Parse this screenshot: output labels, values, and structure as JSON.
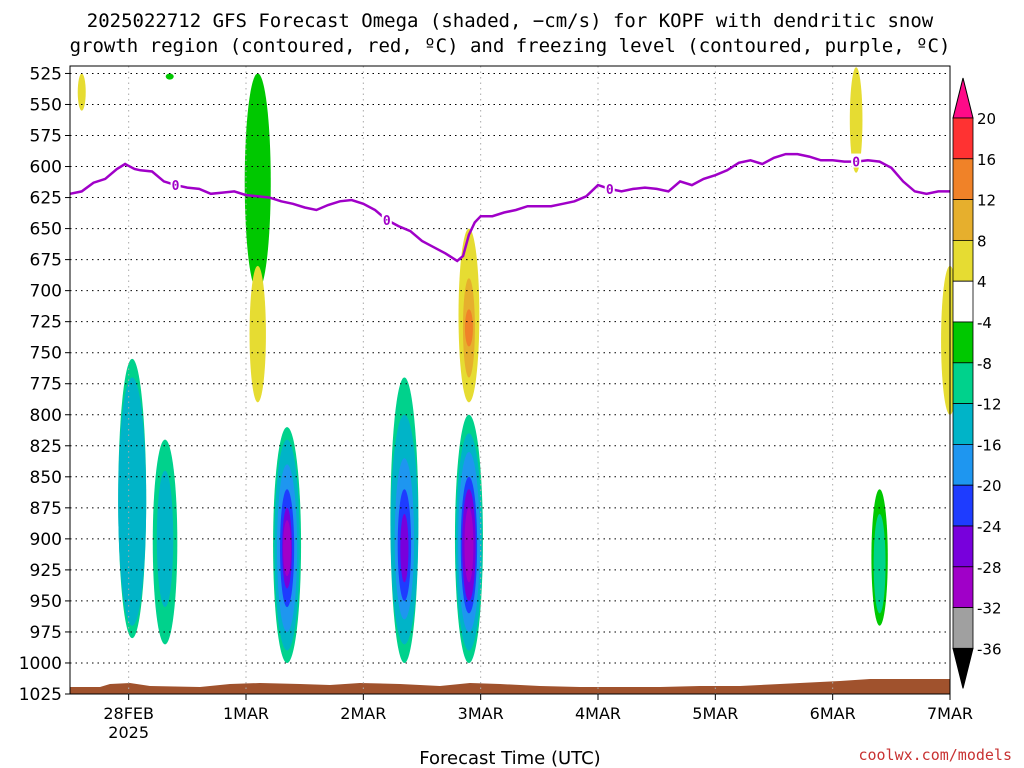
{
  "chart_data": {
    "type": "heatmap",
    "title_line1": "2025022712 GFS Forecast Omega (shaded, −cm/s) for KOPF with dendritic snow",
    "title_line2": "growth region (contoured, red, ºC) and freezing level (contoured, purple, ºC)",
    "xlabel": "Forecast Time (UTC)",
    "credit": "coolwx.com/models",
    "y_ticks": [
      525,
      550,
      575,
      600,
      625,
      650,
      675,
      700,
      725,
      750,
      775,
      800,
      825,
      850,
      875,
      900,
      925,
      950,
      975,
      1000,
      1025
    ],
    "y_range_hPa": [
      519,
      1025
    ],
    "x_ticks": [
      {
        "day": 0.5,
        "label": "28FEB",
        "sub": "2025"
      },
      {
        "day": 1.5,
        "label": "1MAR",
        "sub": ""
      },
      {
        "day": 2.5,
        "label": "2MAR",
        "sub": ""
      },
      {
        "day": 3.5,
        "label": "3MAR",
        "sub": ""
      },
      {
        "day": 4.5,
        "label": "4MAR",
        "sub": ""
      },
      {
        "day": 5.5,
        "label": "5MAR",
        "sub": ""
      },
      {
        "day": 6.5,
        "label": "6MAR",
        "sub": ""
      },
      {
        "day": 7.5,
        "label": "7MAR",
        "sub": ""
      }
    ],
    "x_range_days": [
      0,
      7.5
    ],
    "grid": true,
    "colorbar": {
      "labels": [
        "20",
        "16",
        "12",
        "8",
        "4",
        "-4",
        "-8",
        "-12",
        "-16",
        "-20",
        "-24",
        "-28",
        "-32",
        "-36"
      ],
      "colors": [
        "#ff0a88",
        "#ff3232",
        "#f08228",
        "#e6af2d",
        "#e6dc32",
        "#ffffff",
        "#00c800",
        "#00d28c",
        "#00b4c8",
        "#1e96f0",
        "#1e3cff",
        "#7800dc",
        "#a000c8",
        "#a0a0a0",
        "#000000"
      ]
    },
    "freezing_level": {
      "label": "0",
      "color": "#a000c8",
      "points": [
        [
          0,
          622
        ],
        [
          0.1,
          620
        ],
        [
          0.2,
          613
        ],
        [
          0.3,
          610
        ],
        [
          0.4,
          602
        ],
        [
          0.47,
          598
        ],
        [
          0.55,
          602
        ],
        [
          0.6,
          603
        ],
        [
          0.7,
          604
        ],
        [
          0.8,
          612
        ],
        [
          0.9,
          615
        ],
        [
          1.0,
          617
        ],
        [
          1.1,
          618
        ],
        [
          1.2,
          622
        ],
        [
          1.3,
          621
        ],
        [
          1.4,
          620
        ],
        [
          1.5,
          623
        ],
        [
          1.6,
          624
        ],
        [
          1.7,
          625
        ],
        [
          1.8,
          628
        ],
        [
          1.9,
          630
        ],
        [
          2.0,
          633
        ],
        [
          2.1,
          635
        ],
        [
          2.2,
          631
        ],
        [
          2.3,
          628
        ],
        [
          2.4,
          627
        ],
        [
          2.5,
          630
        ],
        [
          2.6,
          635
        ],
        [
          2.7,
          643
        ],
        [
          2.8,
          648
        ],
        [
          2.9,
          652
        ],
        [
          3.0,
          660
        ],
        [
          3.1,
          665
        ],
        [
          3.2,
          670
        ],
        [
          3.3,
          676
        ],
        [
          3.35,
          672
        ],
        [
          3.4,
          655
        ],
        [
          3.45,
          645
        ],
        [
          3.5,
          640
        ],
        [
          3.6,
          640
        ],
        [
          3.7,
          637
        ],
        [
          3.8,
          635
        ],
        [
          3.9,
          632
        ],
        [
          4.0,
          632
        ],
        [
          4.1,
          632
        ],
        [
          4.2,
          630
        ],
        [
          4.3,
          628
        ],
        [
          4.4,
          624
        ],
        [
          4.5,
          615
        ],
        [
          4.6,
          618
        ],
        [
          4.7,
          620
        ],
        [
          4.8,
          618
        ],
        [
          4.9,
          617
        ],
        [
          5.0,
          618
        ],
        [
          5.1,
          620
        ],
        [
          5.2,
          612
        ],
        [
          5.3,
          615
        ],
        [
          5.4,
          610
        ],
        [
          5.5,
          607
        ],
        [
          5.6,
          603
        ],
        [
          5.7,
          597
        ],
        [
          5.8,
          595
        ],
        [
          5.9,
          598
        ],
        [
          6.0,
          593
        ],
        [
          6.1,
          590
        ],
        [
          6.2,
          590
        ],
        [
          6.3,
          592
        ],
        [
          6.4,
          595
        ],
        [
          6.5,
          595
        ],
        [
          6.6,
          596
        ],
        [
          6.7,
          596
        ],
        [
          6.8,
          595
        ],
        [
          6.9,
          596
        ],
        [
          7.0,
          601
        ],
        [
          7.1,
          612
        ],
        [
          7.2,
          620
        ],
        [
          7.3,
          622
        ],
        [
          7.4,
          620
        ],
        [
          7.5,
          620
        ]
      ]
    },
    "omega_regions": [
      {
        "t": 0.1,
        "top": 525,
        "bot": 555,
        "v": 4
      },
      {
        "t": 0.85,
        "top": 525,
        "bot": 530,
        "v": -4
      },
      {
        "t": 0.53,
        "top": 755,
        "bot": 980,
        "v": -8
      },
      {
        "t": 0.53,
        "top": 770,
        "bot": 970,
        "v": -12
      },
      {
        "t": 0.81,
        "top": 820,
        "bot": 985,
        "v": -8
      },
      {
        "t": 0.81,
        "top": 845,
        "bot": 955,
        "v": -12
      },
      {
        "t": 1.85,
        "top": 810,
        "bot": 1000,
        "v": -8
      },
      {
        "t": 1.85,
        "top": 820,
        "bot": 990,
        "v": -12
      },
      {
        "t": 1.85,
        "top": 840,
        "bot": 975,
        "v": -16
      },
      {
        "t": 1.85,
        "top": 860,
        "bot": 955,
        "v": -20
      },
      {
        "t": 1.85,
        "top": 875,
        "bot": 940,
        "v": -24
      },
      {
        "t": 1.85,
        "top": 885,
        "bot": 930,
        "v": -28
      },
      {
        "t": 2.85,
        "top": 770,
        "bot": 1000,
        "v": -8
      },
      {
        "t": 2.85,
        "top": 800,
        "bot": 985,
        "v": -12
      },
      {
        "t": 2.85,
        "top": 835,
        "bot": 965,
        "v": -16
      },
      {
        "t": 2.85,
        "top": 860,
        "bot": 950,
        "v": -20
      },
      {
        "t": 2.85,
        "top": 880,
        "bot": 935,
        "v": -24
      },
      {
        "t": 3.4,
        "top": 800,
        "bot": 1000,
        "v": -8
      },
      {
        "t": 3.4,
        "top": 815,
        "bot": 990,
        "v": -12
      },
      {
        "t": 3.4,
        "top": 830,
        "bot": 975,
        "v": -16
      },
      {
        "t": 3.4,
        "top": 850,
        "bot": 960,
        "v": -20
      },
      {
        "t": 3.4,
        "top": 860,
        "bot": 950,
        "v": -24
      },
      {
        "t": 3.4,
        "top": 875,
        "bot": 935,
        "v": -28
      },
      {
        "t": 3.4,
        "top": 650,
        "bot": 790,
        "v": 4
      },
      {
        "t": 3.4,
        "top": 690,
        "bot": 770,
        "v": 8
      },
      {
        "t": 3.4,
        "top": 715,
        "bot": 745,
        "v": 12
      },
      {
        "t": 1.6,
        "top": 525,
        "bot": 700,
        "v": -4
      },
      {
        "t": 1.6,
        "top": 680,
        "bot": 790,
        "v": 4
      },
      {
        "t": 6.7,
        "top": 520,
        "bot": 605,
        "v": 4
      },
      {
        "t": 6.9,
        "top": 860,
        "bot": 970,
        "v": -4
      },
      {
        "t": 6.9,
        "top": 880,
        "bot": 960,
        "v": -8
      },
      {
        "t": 7.5,
        "top": 680,
        "bot": 800,
        "v": 4
      }
    ]
  }
}
